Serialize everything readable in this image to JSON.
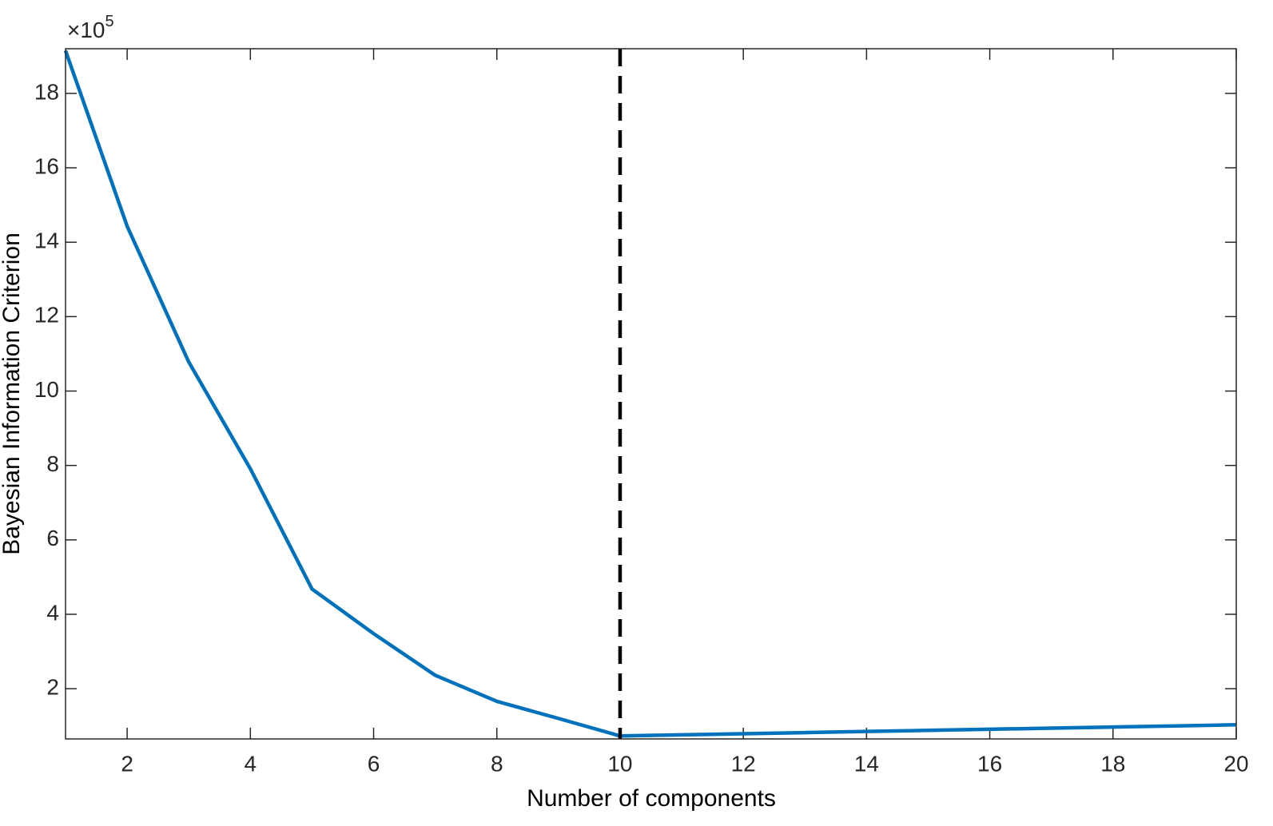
{
  "chart_data": {
    "type": "line",
    "x_label": "Number of components",
    "y_label": "Bayesian Information Criterion",
    "y_multiplier": "×10",
    "y_exponent": "5",
    "x": [
      1,
      2,
      3,
      4,
      5,
      6,
      7,
      8,
      9,
      10,
      11,
      12,
      13,
      14,
      15,
      16,
      17,
      18,
      19,
      20
    ],
    "series": [
      {
        "color": "#0072BD",
        "values": [
          19.15,
          14.43,
          10.78,
          7.91,
          4.68,
          3.48,
          2.36,
          1.66,
          1.2,
          0.73,
          0.76,
          0.79,
          0.82,
          0.85,
          0.88,
          0.91,
          0.94,
          0.97,
          1.0,
          1.03
        ]
      }
    ],
    "reference_line": {
      "x": 10,
      "color": "#000000",
      "dashed": true
    },
    "xlim": [
      1,
      20
    ],
    "ylim": [
      0.65,
      19.2
    ],
    "xticks": [
      2,
      4,
      6,
      8,
      10,
      12,
      14,
      16,
      18,
      20
    ],
    "yticks": [
      2,
      4,
      6,
      8,
      10,
      12,
      14,
      16,
      18
    ],
    "grid": false
  }
}
